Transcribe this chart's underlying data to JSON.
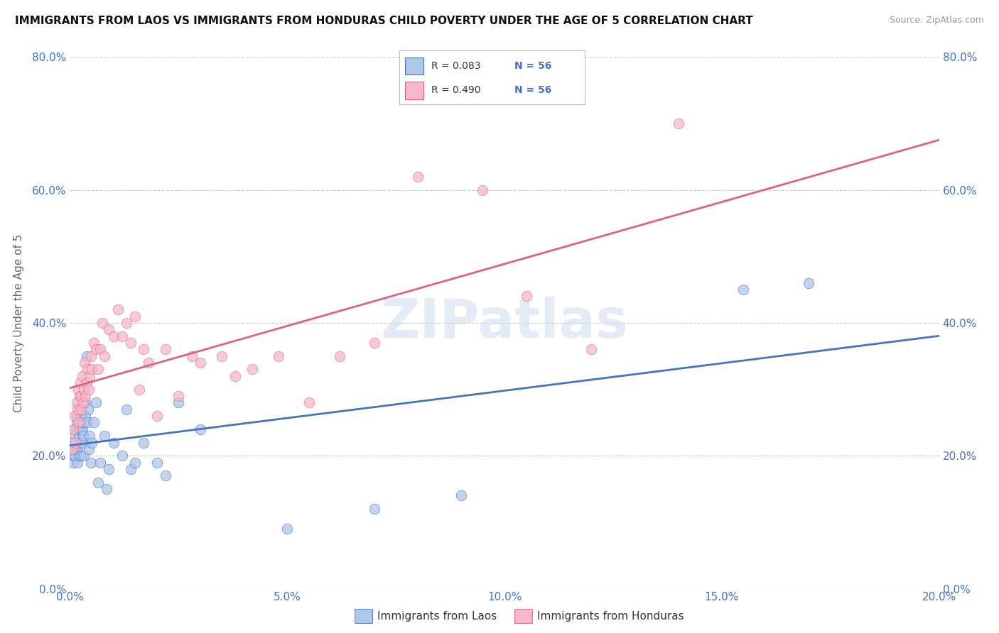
{
  "title": "IMMIGRANTS FROM LAOS VS IMMIGRANTS FROM HONDURAS CHILD POVERTY UNDER THE AGE OF 5 CORRELATION CHART",
  "source": "Source: ZipAtlas.com",
  "ylabel": "Child Poverty Under the Age of 5",
  "legend_label_blue": "Immigrants from Laos",
  "legend_label_pink": "Immigrants from Honduras",
  "r_blue": "0.083",
  "n_blue": "56",
  "r_pink": "0.490",
  "n_pink": "56",
  "color_blue": "#aec6e8",
  "color_pink": "#f5b8c8",
  "line_color_blue": "#4472c4",
  "line_color_pink": "#e06080",
  "text_color_blue": "#4472c4",
  "watermark_color": "#d0dff0",
  "watermark": "ZIPatlas",
  "xlim": [
    0.0,
    0.2
  ],
  "ylim": [
    0.0,
    0.8
  ],
  "xticks": [
    0.0,
    0.05,
    0.1,
    0.15,
    0.2
  ],
  "yticks": [
    0.0,
    0.2,
    0.4,
    0.6,
    0.8
  ],
  "blue_x": [
    0.0005,
    0.0005,
    0.0008,
    0.001,
    0.001,
    0.0012,
    0.0013,
    0.0015,
    0.0015,
    0.0018,
    0.0018,
    0.002,
    0.002,
    0.0022,
    0.0022,
    0.0023,
    0.0024,
    0.0025,
    0.0026,
    0.0027,
    0.0028,
    0.0028,
    0.003,
    0.003,
    0.0032,
    0.0035,
    0.0036,
    0.0038,
    0.004,
    0.0042,
    0.0043,
    0.0045,
    0.0048,
    0.005,
    0.0055,
    0.006,
    0.0065,
    0.007,
    0.008,
    0.0085,
    0.009,
    0.01,
    0.012,
    0.013,
    0.014,
    0.015,
    0.017,
    0.02,
    0.022,
    0.025,
    0.03,
    0.05,
    0.07,
    0.09,
    0.155,
    0.17
  ],
  "blue_y": [
    0.2,
    0.22,
    0.19,
    0.2,
    0.24,
    0.21,
    0.23,
    0.25,
    0.26,
    0.19,
    0.21,
    0.23,
    0.24,
    0.25,
    0.27,
    0.2,
    0.22,
    0.24,
    0.26,
    0.2,
    0.22,
    0.24,
    0.23,
    0.25,
    0.2,
    0.26,
    0.28,
    0.35,
    0.25,
    0.27,
    0.21,
    0.23,
    0.19,
    0.22,
    0.25,
    0.28,
    0.16,
    0.19,
    0.23,
    0.15,
    0.18,
    0.22,
    0.2,
    0.27,
    0.18,
    0.19,
    0.22,
    0.19,
    0.17,
    0.28,
    0.24,
    0.09,
    0.12,
    0.14,
    0.45,
    0.46
  ],
  "pink_x": [
    0.0005,
    0.0008,
    0.001,
    0.0012,
    0.0015,
    0.0017,
    0.0019,
    0.002,
    0.0022,
    0.0024,
    0.0025,
    0.0026,
    0.0028,
    0.003,
    0.0032,
    0.0034,
    0.0036,
    0.0038,
    0.004,
    0.0043,
    0.0045,
    0.0048,
    0.005,
    0.0055,
    0.006,
    0.0065,
    0.007,
    0.0075,
    0.008,
    0.009,
    0.01,
    0.011,
    0.012,
    0.013,
    0.014,
    0.015,
    0.016,
    0.017,
    0.018,
    0.02,
    0.022,
    0.025,
    0.028,
    0.03,
    0.035,
    0.038,
    0.042,
    0.048,
    0.055,
    0.062,
    0.07,
    0.08,
    0.095,
    0.105,
    0.12,
    0.14
  ],
  "pink_y": [
    0.21,
    0.24,
    0.26,
    0.22,
    0.28,
    0.27,
    0.3,
    0.25,
    0.29,
    0.31,
    0.27,
    0.29,
    0.32,
    0.28,
    0.3,
    0.34,
    0.29,
    0.31,
    0.33,
    0.3,
    0.32,
    0.35,
    0.33,
    0.37,
    0.36,
    0.33,
    0.36,
    0.4,
    0.35,
    0.39,
    0.38,
    0.42,
    0.38,
    0.4,
    0.37,
    0.41,
    0.3,
    0.36,
    0.34,
    0.26,
    0.36,
    0.29,
    0.35,
    0.34,
    0.35,
    0.32,
    0.33,
    0.35,
    0.28,
    0.35,
    0.37,
    0.62,
    0.6,
    0.44,
    0.36,
    0.7
  ]
}
